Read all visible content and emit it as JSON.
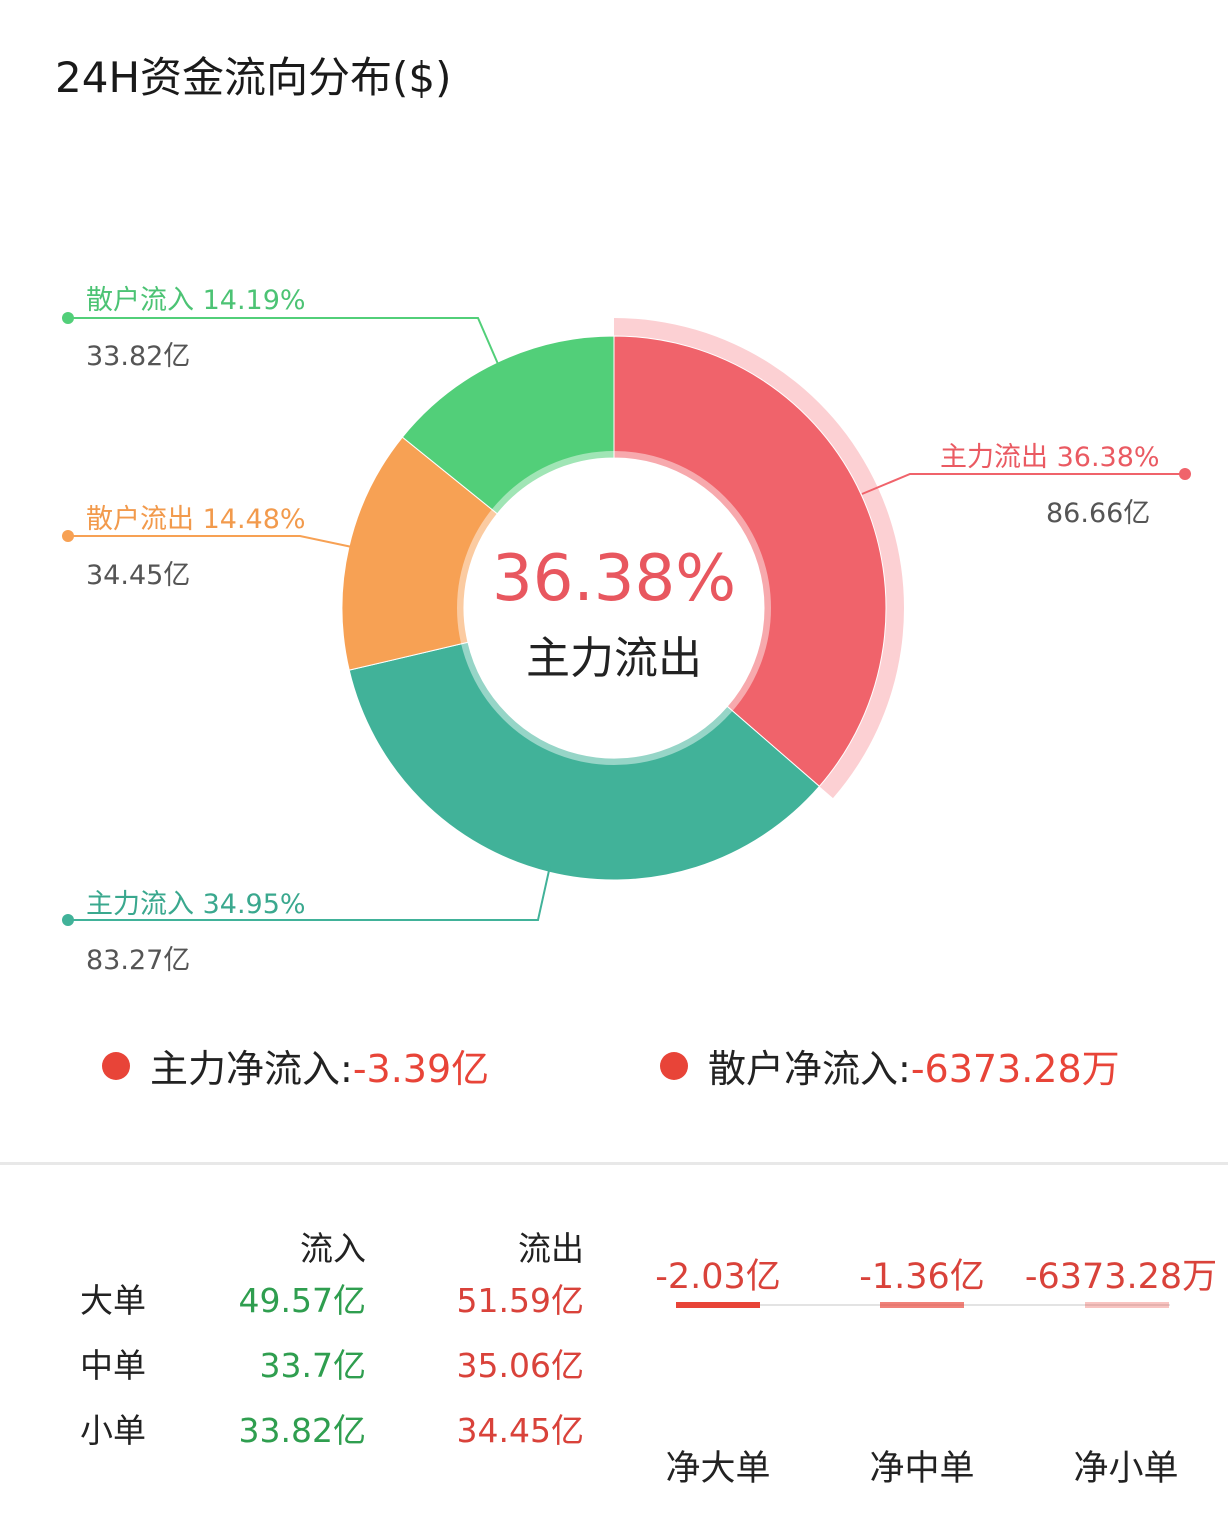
{
  "title": "24H资金流向分布($)",
  "chart_data": {
    "type": "pie",
    "title": "24H资金流向分布($)",
    "center": {
      "percent": "36.38%",
      "label": "主力流出"
    },
    "slices": [
      {
        "name": "主力流出",
        "percent": 36.38,
        "percent_label": "36.38%",
        "amount": "86.66亿",
        "color": "#f0636b"
      },
      {
        "name": "主力流入",
        "percent": 34.95,
        "percent_label": "34.95%",
        "amount": "83.27亿",
        "color": "#41b299"
      },
      {
        "name": "散户流出",
        "percent": 14.48,
        "percent_label": "14.48%",
        "amount": "34.45亿",
        "color": "#f7a154"
      },
      {
        "name": "散户流入",
        "percent": 14.19,
        "percent_label": "14.19%",
        "amount": "33.82亿",
        "color": "#52cf79"
      }
    ]
  },
  "net_flow": {
    "main_label": "主力净流入:",
    "main_value": "-3.39亿",
    "retail_label": "散户净流入:",
    "retail_value": "-6373.28万"
  },
  "table": {
    "col_in": "流入",
    "col_out": "流出",
    "rows": [
      {
        "label": "大单",
        "in": "49.57亿",
        "out": "51.59亿"
      },
      {
        "label": "中单",
        "in": "33.7亿",
        "out": "35.06亿"
      },
      {
        "label": "小单",
        "in": "33.82亿",
        "out": "34.45亿"
      }
    ]
  },
  "net_bars": [
    {
      "label": "净大单",
      "value": "-2.03亿",
      "magnitude": 2.03
    },
    {
      "label": "净中单",
      "value": "-1.36亿",
      "magnitude": 1.36
    },
    {
      "label": "净小单",
      "value": "-6373.28万",
      "magnitude": 0.6373
    }
  ],
  "colors": {
    "negative": "#e84438",
    "positive": "#2f9e4f"
  }
}
